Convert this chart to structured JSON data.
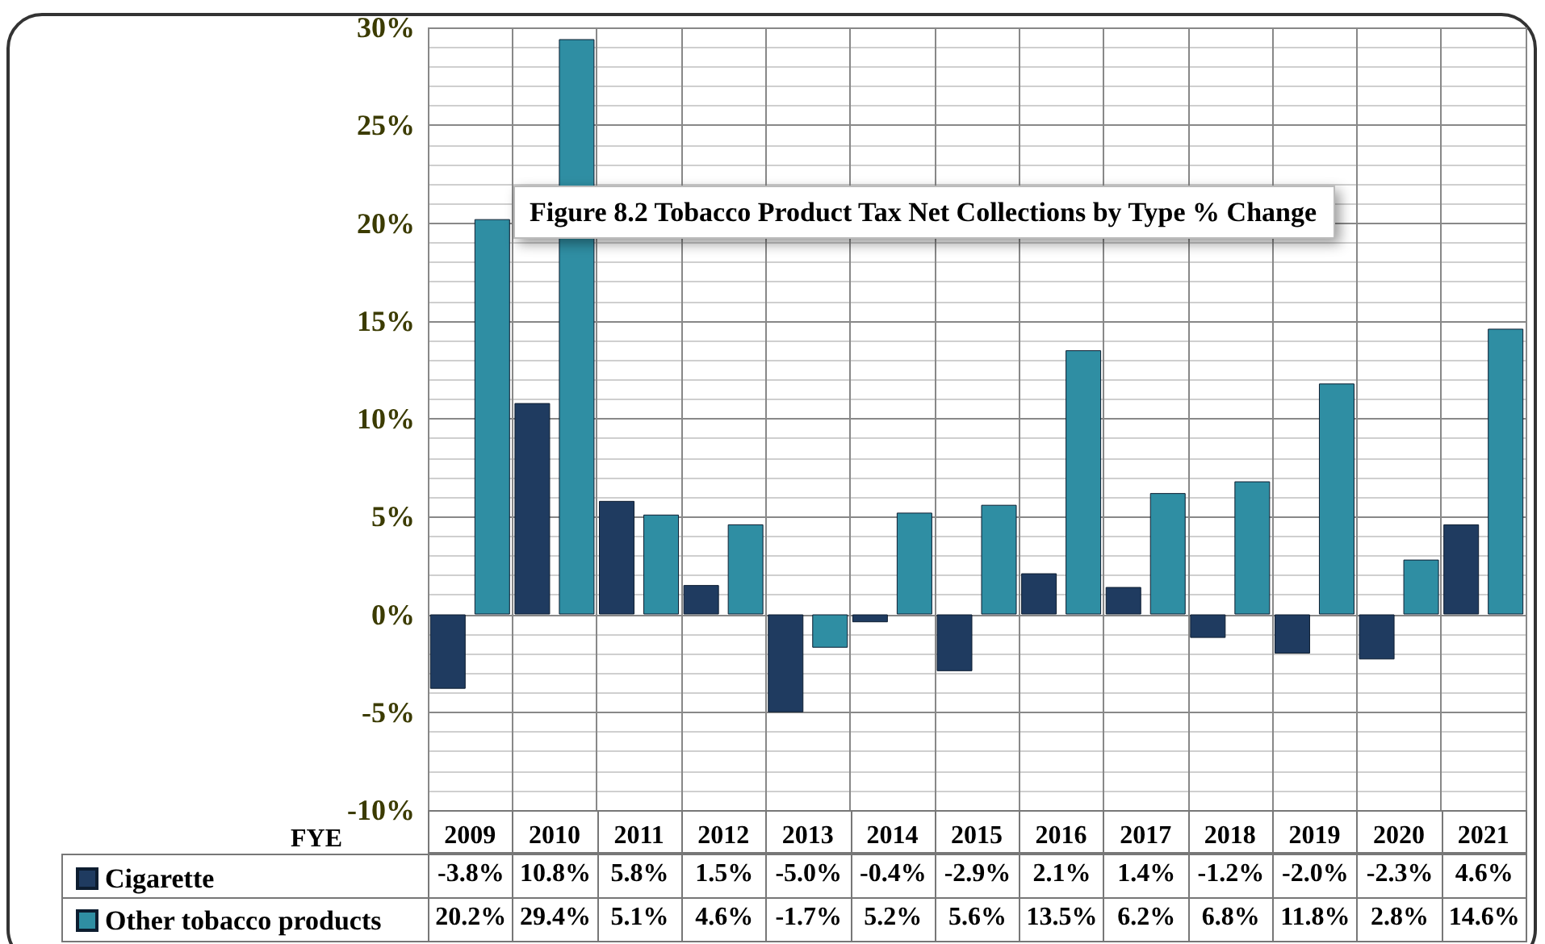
{
  "chart_data": {
    "type": "bar",
    "title": "Figure 8.2 Tobacco Product Tax Net Collections by Type % Change",
    "xlabel": "FYE",
    "categories": [
      "2009",
      "2010",
      "2011",
      "2012",
      "2013",
      "2014",
      "2015",
      "2016",
      "2017",
      "2018",
      "2019",
      "2020",
      "2021"
    ],
    "series": [
      {
        "name": "Cigarette",
        "color": "#1f3b60",
        "values": [
          -3.8,
          10.8,
          5.8,
          1.5,
          -5.0,
          -0.4,
          -2.9,
          2.1,
          1.4,
          -1.2,
          -2.0,
          -2.3,
          4.6
        ],
        "value_labels": [
          "-3.8%",
          "10.8%",
          "5.8%",
          "1.5%",
          "-5.0%",
          "-0.4%",
          "-2.9%",
          "2.1%",
          "1.4%",
          "-1.2%",
          "-2.0%",
          "-2.3%",
          "4.6%"
        ]
      },
      {
        "name": "Other tobacco products",
        "color": "#2f8ea3",
        "values": [
          20.2,
          29.4,
          5.1,
          4.6,
          -1.7,
          5.2,
          5.6,
          13.5,
          6.2,
          6.8,
          11.8,
          2.8,
          14.6
        ],
        "value_labels": [
          "20.2%",
          "29.4%",
          "5.1%",
          "4.6%",
          "-1.7%",
          "5.2%",
          "5.6%",
          "13.5%",
          "6.2%",
          "6.8%",
          "11.8%",
          "2.8%",
          "14.6%"
        ]
      }
    ],
    "ylim": [
      -10,
      30
    ],
    "yticks": [
      {
        "value": -10,
        "label": "-10%"
      },
      {
        "value": -5,
        "label": "-5%"
      },
      {
        "value": 0,
        "label": "0%"
      },
      {
        "value": 5,
        "label": "5%"
      },
      {
        "value": 10,
        "label": "10%"
      },
      {
        "value": 15,
        "label": "15%"
      },
      {
        "value": 20,
        "label": "20%"
      },
      {
        "value": 25,
        "label": "25%"
      },
      {
        "value": 30,
        "label": "30%"
      }
    ],
    "grid": true,
    "legend": "bottom"
  }
}
